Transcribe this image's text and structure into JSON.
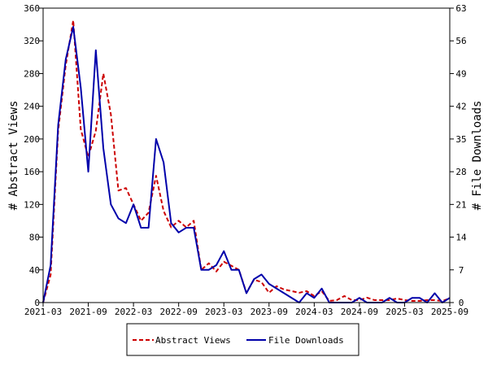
{
  "chart_data": {
    "type": "line",
    "x_format": "YYYY-MM",
    "x": [
      "2021-03",
      "2021-04",
      "2021-05",
      "2021-06",
      "2021-07",
      "2021-08",
      "2021-09",
      "2021-10",
      "2021-11",
      "2021-12",
      "2022-01",
      "2022-02",
      "2022-03",
      "2022-04",
      "2022-05",
      "2022-06",
      "2022-07",
      "2022-08",
      "2022-09",
      "2022-10",
      "2022-11",
      "2022-12",
      "2023-01",
      "2023-02",
      "2023-03",
      "2023-04",
      "2023-05",
      "2023-06",
      "2023-07",
      "2023-08",
      "2023-09",
      "2023-10",
      "2023-11",
      "2023-12",
      "2024-01",
      "2024-02",
      "2024-03",
      "2024-04",
      "2024-05",
      "2024-06",
      "2024-07",
      "2024-08",
      "2024-09",
      "2024-10",
      "2024-11",
      "2024-12",
      "2025-01",
      "2025-02",
      "2025-03",
      "2025-04",
      "2025-05",
      "2025-06",
      "2025-07",
      "2025-08",
      "2025-09"
    ],
    "series": [
      {
        "name": "Abstract Views",
        "axis": "left",
        "color": "#cc0000",
        "style": "dashed",
        "values": [
          0,
          34,
          210,
          290,
          345,
          212,
          178,
          210,
          280,
          230,
          137,
          140,
          120,
          100,
          110,
          155,
          112,
          92,
          100,
          92,
          100,
          40,
          48,
          38,
          50,
          45,
          40,
          12,
          28,
          25,
          12,
          20,
          16,
          14,
          12,
          14,
          8,
          14,
          2,
          3,
          8,
          3,
          3,
          6,
          3,
          3,
          3,
          5,
          3,
          2,
          2,
          3,
          3,
          2,
          5
        ]
      },
      {
        "name": "File Downloads",
        "axis": "right",
        "color": "#0000aa",
        "style": "solid",
        "values": [
          0,
          8,
          38,
          52,
          59,
          46,
          28,
          54,
          33,
          21,
          18,
          17,
          21,
          16,
          16,
          35,
          30,
          17,
          15,
          16,
          16,
          7,
          7,
          8,
          11,
          7,
          7,
          2,
          5,
          6,
          4,
          3,
          2,
          1,
          0,
          2,
          1,
          3,
          0,
          0,
          0,
          0,
          1,
          0,
          0,
          0,
          1,
          0,
          0,
          1,
          1,
          0,
          2,
          0,
          1
        ]
      }
    ],
    "xticks": [
      "2021-03",
      "2021-09",
      "2022-03",
      "2022-09",
      "2023-03",
      "2023-09",
      "2024-03",
      "2024-09",
      "2025-03",
      "2025-09"
    ],
    "y_left": {
      "label": "# Abstract Views",
      "min": 0,
      "max": 360,
      "ticks": [
        0,
        40,
        80,
        120,
        160,
        200,
        240,
        280,
        320,
        360
      ]
    },
    "y_right": {
      "label": "# File Downloads",
      "min": 0,
      "max": 63,
      "ticks": [
        0,
        7,
        14,
        21,
        28,
        35,
        42,
        49,
        56,
        63
      ]
    },
    "legend": {
      "position": "bottom-center",
      "boxed": true
    },
    "grid": false
  }
}
